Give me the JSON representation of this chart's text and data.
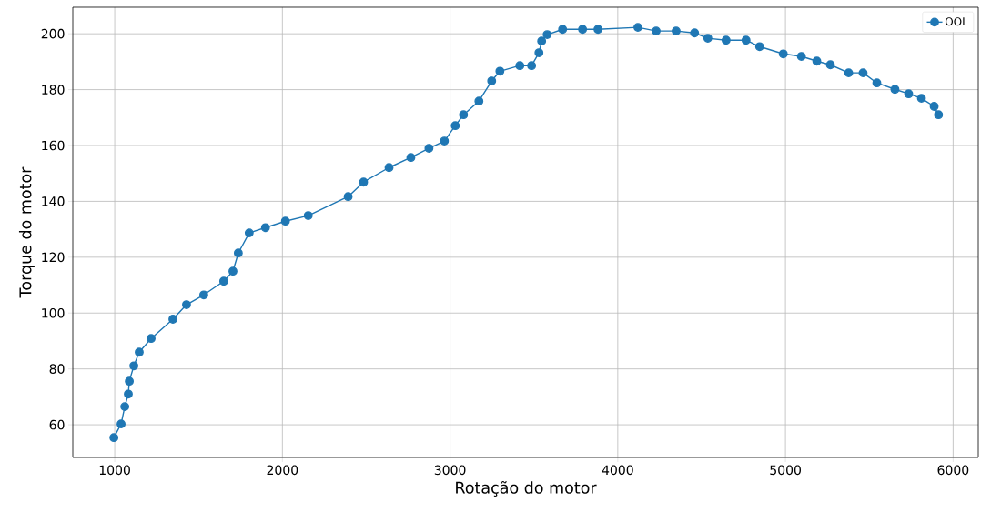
{
  "chart_data": {
    "type": "line",
    "xlabel": "Rotação do motor",
    "ylabel": "Torque do motor",
    "x": [
      995,
      1038,
      1060,
      1081,
      1087,
      1114,
      1146,
      1217,
      1347,
      1428,
      1531,
      1650,
      1705,
      1737,
      1802,
      1899,
      2018,
      2154,
      2392,
      2484,
      2636,
      2766,
      2874,
      2966,
      3031,
      3080,
      3172,
      3248,
      3297,
      3416,
      3486,
      3530,
      3546,
      3579,
      3671,
      3790,
      3882,
      4120,
      4229,
      4348,
      4458,
      4537,
      4646,
      4765,
      4846,
      4987,
      5095,
      5187,
      5268,
      5377,
      5463,
      5545,
      5653,
      5735,
      5811,
      5887,
      5913
    ],
    "series": [
      {
        "name": "OOL",
        "color": "#1f77b4",
        "values": [
          55.4,
          60.3,
          66.5,
          71.0,
          75.6,
          81.1,
          86.0,
          90.9,
          97.8,
          103.0,
          106.5,
          111.4,
          115.0,
          121.5,
          128.7,
          130.6,
          132.9,
          134.9,
          141.7,
          146.9,
          152.1,
          155.7,
          159.0,
          161.6,
          167.1,
          171.0,
          175.9,
          183.1,
          186.6,
          188.6,
          188.6,
          193.2,
          197.4,
          199.7,
          201.6,
          201.6,
          201.6,
          202.3,
          201.0,
          201.0,
          200.3,
          198.4,
          197.7,
          197.7,
          195.4,
          192.8,
          191.9,
          190.2,
          188.9,
          186.0,
          186.0,
          182.4,
          180.1,
          178.5,
          176.9,
          174.0,
          171.0
        ]
      }
    ],
    "xlim": [
      750,
      6150
    ],
    "ylim": [
      48.3,
      209.5
    ],
    "xticks": [
      1000,
      2000,
      3000,
      4000,
      5000,
      6000
    ],
    "yticks": [
      60,
      80,
      100,
      120,
      140,
      160,
      180,
      200
    ],
    "grid": true,
    "legend": "top right",
    "marker": "circle",
    "line_style": "solid"
  }
}
